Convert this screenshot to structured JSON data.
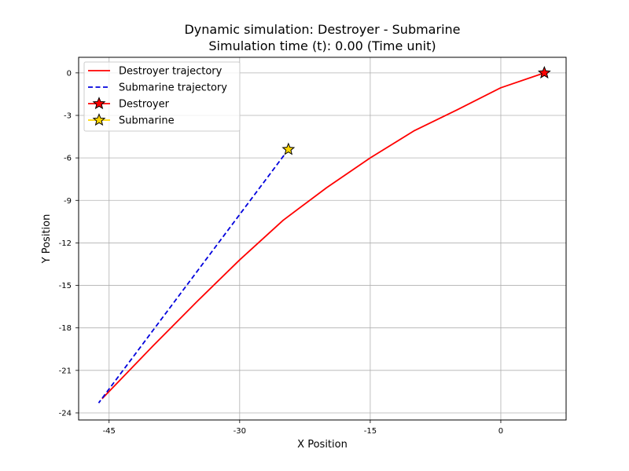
{
  "chart_data": {
    "type": "line",
    "title_line1": "Dynamic simulation: Destroyer - Submarine",
    "title_line2": "Simulation time (t): 0.00 (Time unit)",
    "xlabel": "X Position",
    "ylabel": "Y Position",
    "xlim": [
      -48.5,
      7.5
    ],
    "ylim": [
      -24.5,
      1.1
    ],
    "x_ticks": [
      -45,
      -30,
      -15,
      0
    ],
    "x_tick_labels": [
      "-45",
      "-30",
      "-15",
      "0"
    ],
    "y_ticks": [
      0,
      -3,
      -6,
      -9,
      -12,
      -15,
      -18,
      -21,
      -24
    ],
    "y_tick_labels": [
      "0",
      "-3",
      "-6",
      "-9",
      "-12",
      "-15",
      "-18",
      "-21",
      "-24"
    ],
    "grid": true,
    "legend_position": "upper-left",
    "series": [
      {
        "name": "Destroyer trajectory",
        "color": "#ff0000",
        "style": "solid",
        "x": [
          5.0,
          0,
          -5,
          -10,
          -15,
          -20,
          -25,
          -30,
          -35,
          -40,
          -45.8
        ],
        "y": [
          0,
          -1.05,
          -2.6,
          -4.1,
          -6.0,
          -8.1,
          -10.4,
          -13.2,
          -16.2,
          -19.3,
          -23.0
        ]
      },
      {
        "name": "Submarine trajectory",
        "color": "#0000dd",
        "style": "dashed",
        "x": [
          -24.4,
          -46.2
        ],
        "y": [
          -5.4,
          -23.3
        ]
      }
    ],
    "markers": [
      {
        "name": "Destroyer",
        "x": 5.0,
        "y": 0,
        "color": "#ff0000",
        "line_color": "#ff0000",
        "shape": "star"
      },
      {
        "name": "Submarine",
        "x": -24.4,
        "y": -5.4,
        "color": "#ffd700",
        "line_color": "#ffd700",
        "shape": "star"
      }
    ]
  }
}
